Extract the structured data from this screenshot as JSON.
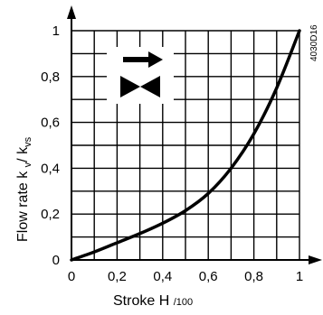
{
  "figure_code": "4030D16",
  "chart_data": {
    "type": "line",
    "xlabel": {
      "main": "Stroke H ",
      "sub": "/100"
    },
    "ylabel": {
      "main": "Flow rate k ",
      "sub1": "v",
      "mid": "/ k",
      "sub2": "vs"
    },
    "xlim": [
      0,
      1
    ],
    "ylim": [
      0,
      1
    ],
    "grid": true,
    "x_ticks": [
      "0",
      "0,2",
      "0,4",
      "0,6",
      "0,8",
      "1"
    ],
    "y_ticks": [
      "0",
      "0,2",
      "0,4",
      "0,6",
      "0,8",
      "1"
    ],
    "series": [
      {
        "x": [
          0,
          0.1,
          0.2,
          0.3,
          0.4,
          0.5,
          0.6,
          0.7,
          0.8,
          0.9,
          1.0
        ],
        "y": [
          0,
          0.035,
          0.075,
          0.115,
          0.16,
          0.215,
          0.29,
          0.4,
          0.55,
          0.75,
          1.0
        ]
      }
    ],
    "annotations": [
      {
        "name": "flow-direction-arrow-icon"
      },
      {
        "name": "valve-symbol-icon"
      }
    ]
  }
}
